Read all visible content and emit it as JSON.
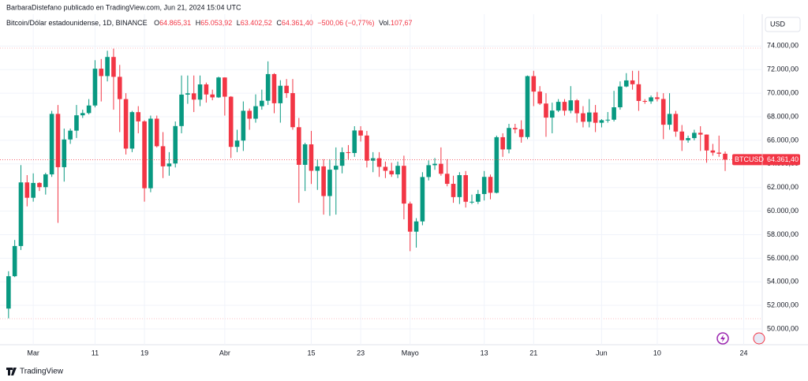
{
  "header": {
    "byline": "BarbaraDistefano publicado en TradingView.com, Jun 21, 2024 15:04 UTC",
    "symbol": "Bitcoin/Dólar estadounidense, 1D, BINANCE",
    "open_prefix": "O",
    "open_text": "64.865,31",
    "high_prefix": "H",
    "high_text": "65.053,92",
    "low_prefix": "L",
    "low_text": "63.402,52",
    "close_prefix": "C",
    "close_text": "64.361,40",
    "change_text": "−500,06 (−0,77%)",
    "vol_prefix": "Vol.",
    "vol_text": "107,67",
    "currency": "USD",
    "brand": "TradingView"
  },
  "chart_data": {
    "type": "candlestick",
    "up_color": "#089981",
    "down_color": "#f23645",
    "grid": true,
    "x": [
      "2024-02-26",
      "2024-02-27",
      "2024-02-28",
      "2024-02-29",
      "2024-03-01",
      "2024-03-02",
      "2024-03-03",
      "2024-03-04",
      "2024-03-05",
      "2024-03-06",
      "2024-03-07",
      "2024-03-08",
      "2024-03-09",
      "2024-03-10",
      "2024-03-11",
      "2024-03-12",
      "2024-03-13",
      "2024-03-14",
      "2024-03-15",
      "2024-03-16",
      "2024-03-17",
      "2024-03-18",
      "2024-03-19",
      "2024-03-20",
      "2024-03-21",
      "2024-03-22",
      "2024-03-23",
      "2024-03-24",
      "2024-03-25",
      "2024-03-26",
      "2024-03-27",
      "2024-03-28",
      "2024-03-29",
      "2024-03-30",
      "2024-03-31",
      "2024-04-01",
      "2024-04-02",
      "2024-04-03",
      "2024-04-04",
      "2024-04-05",
      "2024-04-06",
      "2024-04-07",
      "2024-04-08",
      "2024-04-09",
      "2024-04-10",
      "2024-04-11",
      "2024-04-12",
      "2024-04-13",
      "2024-04-14",
      "2024-04-15",
      "2024-04-16",
      "2024-04-17",
      "2024-04-18",
      "2024-04-19",
      "2024-04-20",
      "2024-04-21",
      "2024-04-22",
      "2024-04-23",
      "2024-04-24",
      "2024-04-25",
      "2024-04-26",
      "2024-04-27",
      "2024-04-28",
      "2024-04-29",
      "2024-04-30",
      "2024-05-01",
      "2024-05-02",
      "2024-05-03",
      "2024-05-04",
      "2024-05-05",
      "2024-05-06",
      "2024-05-07",
      "2024-05-08",
      "2024-05-09",
      "2024-05-10",
      "2024-05-11",
      "2024-05-12",
      "2024-05-13",
      "2024-05-14",
      "2024-05-15",
      "2024-05-16",
      "2024-05-17",
      "2024-05-18",
      "2024-05-19",
      "2024-05-20",
      "2024-05-21",
      "2024-05-22",
      "2024-05-23",
      "2024-05-24",
      "2024-05-25",
      "2024-05-26",
      "2024-05-27",
      "2024-05-28",
      "2024-05-29",
      "2024-05-30",
      "2024-05-31",
      "2024-06-01",
      "2024-06-02",
      "2024-06-03",
      "2024-06-04",
      "2024-06-05",
      "2024-06-06",
      "2024-06-07",
      "2024-06-08",
      "2024-06-09",
      "2024-06-10",
      "2024-06-11",
      "2024-06-12",
      "2024-06-13",
      "2024-06-14",
      "2024-06-15",
      "2024-06-16",
      "2024-06-17",
      "2024-06-18",
      "2024-06-19",
      "2024-06-20",
      "2024-06-21"
    ],
    "open": [
      51730,
      54476,
      57037,
      62432,
      61130,
      62387,
      62031,
      63113,
      68245,
      63724,
      66074,
      66823,
      68124,
      68313,
      68955,
      72078,
      71452,
      73072,
      71388,
      69499,
      65300,
      68393,
      67609,
      61937,
      67840,
      65501,
      63796,
      64037,
      67211,
      69880,
      69988,
      69455,
      70744,
      69892,
      69645,
      71333,
      69702,
      65446,
      65980,
      68508,
      67837,
      68896,
      69360,
      71620,
      69146,
      70631,
      70006,
      67116,
      63924,
      65661,
      63419,
      63793,
      61276,
      63512,
      63843,
      64994,
      64927,
      66837,
      66407,
      64276,
      64481,
      63755,
      63419,
      63114,
      63841,
      60636,
      58254,
      59123,
      62889,
      63892,
      64012,
      63165,
      62312,
      61187,
      63049,
      60792,
      60793,
      61448,
      62901,
      61552,
      66267,
      65231,
      67051,
      66940,
      66278,
      71448,
      70136,
      69122,
      67929,
      68526,
      69265,
      68518,
      69394,
      68296,
      67578,
      68364,
      67491,
      67707,
      67751,
      68805,
      70568,
      71083,
      70757,
      69342,
      69306,
      69648,
      69509,
      67325,
      68242,
      66747,
      66010,
      66191,
      66639,
      66490,
      65140,
      64960,
      64865.31
    ],
    "high": [
      54900,
      57550,
      63900,
      63050,
      63200,
      62450,
      63250,
      68500,
      69000,
      67000,
      67000,
      69000,
      68600,
      69500,
      72800,
      72900,
      73600,
      73780,
      72400,
      70000,
      68500,
      68900,
      67700,
      68100,
      68100,
      66700,
      65000,
      67600,
      71500,
      71500,
      71500,
      71500,
      70900,
      70300,
      71400,
      71350,
      69750,
      66900,
      69300,
      68700,
      69900,
      70300,
      72700,
      71700,
      71100,
      71200,
      71200,
      67900,
      65800,
      66800,
      64400,
      64400,
      64400,
      65400,
      65400,
      65600,
      67200,
      67200,
      66800,
      65000,
      65000,
      64200,
      64100,
      64200,
      64700,
      60800,
      59400,
      63300,
      64300,
      64500,
      65400,
      64400,
      63000,
      63300,
      63400,
      61400,
      61800,
      63400,
      63100,
      66400,
      66600,
      67400,
      67400,
      67700,
      71500,
      71900,
      70600,
      70000,
      69200,
      69500,
      69500,
      70600,
      69500,
      68900,
      69500,
      69000,
      67800,
      68400,
      70200,
      71000,
      71700,
      71900,
      71900,
      69500,
      69800,
      70100,
      70000,
      70000,
      68500,
      67300,
      66400,
      66900,
      67200,
      66500,
      65700,
      66400,
      65053.92
    ],
    "low": [
      50900,
      54400,
      56700,
      60400,
      60800,
      61700,
      61400,
      62900,
      59000,
      62500,
      65700,
      66200,
      67900,
      68200,
      68800,
      69300,
      71000,
      68600,
      66700,
      64800,
      65000,
      66600,
      60800,
      61600,
      65400,
      62800,
      63000,
      63700,
      66600,
      69100,
      68400,
      68900,
      69200,
      69400,
      69600,
      68100,
      64500,
      65000,
      65100,
      66900,
      67500,
      68600,
      69000,
      68300,
      67500,
      69600,
      66900,
      60700,
      61700,
      62300,
      61800,
      59700,
      59600,
      59700,
      63200,
      64400,
      64600,
      65900,
      63700,
      63300,
      62900,
      62800,
      62900,
      62800,
      59300,
      56600,
      56900,
      58800,
      62600,
      63500,
      63000,
      62100,
      60700,
      60600,
      60300,
      60600,
      60600,
      60900,
      61000,
      61500,
      64600,
      64900,
      66600,
      65800,
      66100,
      68900,
      69000,
      66300,
      66600,
      68400,
      68100,
      68300,
      67500,
      67100,
      67100,
      66700,
      67100,
      67500,
      67600,
      68600,
      70500,
      70300,
      68500,
      69100,
      69100,
      69300,
      66100,
      66900,
      66300,
      65100,
      65800,
      66000,
      65100,
      64100,
      64700,
      64600,
      63402.52
    ],
    "close": [
      54476,
      57037,
      62432,
      61130,
      62387,
      62031,
      63113,
      68245,
      63724,
      66074,
      66823,
      68124,
      68313,
      68955,
      72078,
      71452,
      73072,
      71388,
      69499,
      65300,
      68393,
      67609,
      61937,
      67840,
      65501,
      63796,
      64037,
      67211,
      69880,
      69988,
      69455,
      70744,
      69892,
      69645,
      71333,
      69702,
      65446,
      65980,
      68508,
      67837,
      68896,
      69360,
      71620,
      69146,
      70631,
      70006,
      67116,
      63924,
      65661,
      63419,
      63793,
      61276,
      63512,
      63843,
      64994,
      64927,
      66837,
      66407,
      64276,
      64481,
      63755,
      63419,
      63114,
      63841,
      60636,
      58254,
      59123,
      62889,
      63892,
      64012,
      63165,
      62312,
      61187,
      63049,
      60792,
      60793,
      61448,
      62901,
      61552,
      66267,
      65231,
      67051,
      66940,
      66278,
      71448,
      70136,
      69122,
      67929,
      68526,
      69265,
      68518,
      69394,
      68296,
      67578,
      68364,
      67491,
      67707,
      67751,
      68805,
      70568,
      71083,
      70757,
      69342,
      69306,
      69648,
      69509,
      67325,
      68242,
      66747,
      66010,
      66191,
      66639,
      66490,
      65140,
      64960,
      64865,
      64361.4
    ],
    "xlim": [
      "2024-02-25",
      "2024-06-27"
    ],
    "xticks": [
      {
        "value": "2024-03-01",
        "label": "Mar"
      },
      {
        "value": "2024-03-11",
        "label": "11"
      },
      {
        "value": "2024-03-19",
        "label": "19"
      },
      {
        "value": "2024-04-01",
        "label": "Abr"
      },
      {
        "value": "2024-04-15",
        "label": "15"
      },
      {
        "value": "2024-04-23",
        "label": "23"
      },
      {
        "value": "2024-05-01",
        "label": "Mayo"
      },
      {
        "value": "2024-05-13",
        "label": "13"
      },
      {
        "value": "2024-05-21",
        "label": "21"
      },
      {
        "value": "2024-06-01",
        "label": "Jun"
      },
      {
        "value": "2024-06-10",
        "label": "10"
      },
      {
        "value": "2024-06-24",
        "label": "24"
      }
    ],
    "ylim": [
      49000,
      76700
    ],
    "yticks": [
      {
        "value": 50000,
        "label": "50.000,00"
      },
      {
        "value": 52000,
        "label": "52.000,00"
      },
      {
        "value": 54000,
        "label": "54.000,00"
      },
      {
        "value": 56000,
        "label": "56.000,00"
      },
      {
        "value": 58000,
        "label": "58.000,00"
      },
      {
        "value": 60000,
        "label": "60.000,00"
      },
      {
        "value": 62000,
        "label": "62.000,00"
      },
      {
        "value": 64000,
        "label": "64.000,00"
      },
      {
        "value": 66000,
        "label": "66.000,00"
      },
      {
        "value": 68000,
        "label": "68.000,00"
      },
      {
        "value": 70000,
        "label": "70.000,00"
      },
      {
        "value": 72000,
        "label": "72.000,00"
      },
      {
        "value": 74000,
        "label": "74.000,00"
      }
    ],
    "last_price": {
      "value": 64361.4,
      "symbol": "BTCUSD",
      "label": "64.361,40"
    }
  }
}
